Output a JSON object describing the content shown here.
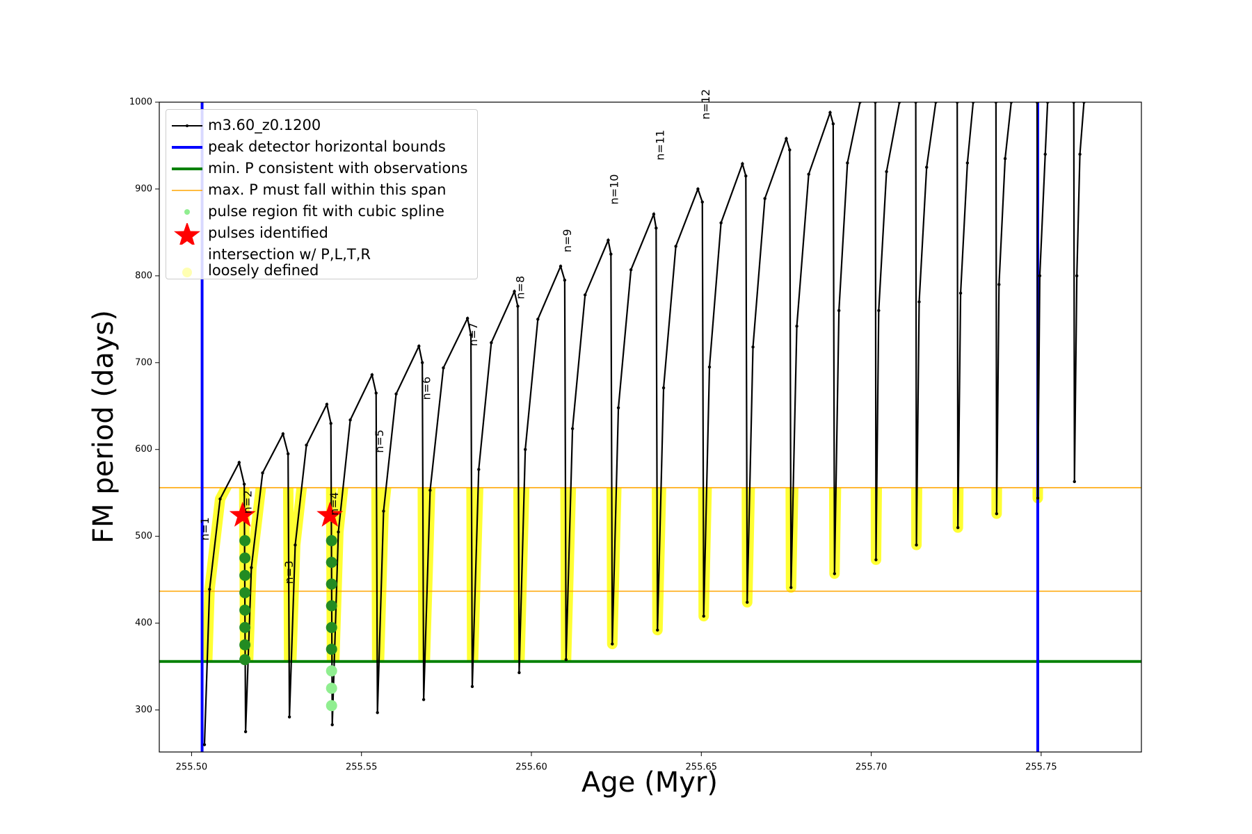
{
  "chart_data": {
    "type": "line",
    "x_label": "Age (Myr)",
    "y_label": "FM period (days)",
    "xlim": [
      255.4905,
      255.7795
    ],
    "ylim": [
      251.6,
      1000
    ],
    "xticks": [
      {
        "value": 255.5,
        "label": "255.50"
      },
      255.55,
      {
        "value": 255.6,
        "label": "255.60"
      },
      255.65,
      {
        "value": 255.7,
        "label": "255.70"
      },
      255.75
    ],
    "yticks": [
      300,
      400,
      500,
      600,
      700,
      800,
      900,
      1000
    ],
    "legend": "upper left",
    "series": [
      {
        "name": "m3.60_z0.1200",
        "kind": "line",
        "color": "#000000",
        "x": [
          255.5038,
          255.5053,
          255.5084,
          255.514,
          255.5155,
          255.5159,
          255.5176,
          255.5209,
          255.5269,
          255.5284,
          255.5288,
          255.5305,
          255.5338,
          255.5398,
          255.541,
          255.5414,
          255.5432,
          255.5467,
          255.5531,
          255.5543,
          255.5547,
          255.5565,
          255.5602,
          255.5669,
          255.5679,
          255.5683,
          255.5702,
          255.5741,
          255.5812,
          255.5822,
          255.5826,
          255.5845,
          255.5882,
          255.595,
          255.596,
          255.5964,
          255.5982,
          255.6019,
          255.6086,
          255.6098,
          255.6102,
          255.6121,
          255.6158,
          255.6226,
          255.6234,
          255.6238,
          255.6256,
          255.6293,
          255.636,
          255.6367,
          255.6371,
          255.6389,
          255.6425,
          255.649,
          255.6503,
          255.6507,
          255.6524,
          255.6558,
          255.6621,
          255.6631,
          255.6635,
          255.6652,
          255.6687,
          255.675,
          255.676,
          255.6764,
          255.6781,
          255.6816,
          255.6879,
          255.6888,
          255.6892,
          255.6905,
          255.693,
          255.6967,
          255.699,
          255.7012,
          255.7014,
          255.7022,
          255.7045,
          255.7083,
          255.7107,
          255.7131,
          255.7133,
          255.7141,
          255.7163,
          255.719,
          255.722,
          255.7253,
          255.7255,
          255.7263,
          255.7283,
          255.73,
          255.7335,
          255.7367,
          255.7369,
          255.7376,
          255.7394,
          255.7412,
          255.745,
          255.7488,
          255.749,
          255.7496,
          255.7512,
          255.7519,
          255.7557,
          255.7596,
          255.7598,
          255.7605,
          255.7614,
          255.7626
        ],
        "values": [
          260,
          439,
          543,
          585,
          560,
          275,
          464,
          573,
          618,
          595,
          292,
          490,
          605,
          652,
          630,
          283,
          505,
          634,
          686,
          665,
          297,
          529,
          664,
          719,
          700,
          312,
          553,
          694,
          751,
          732,
          327,
          577,
          723,
          782,
          765,
          343,
          600,
          750,
          811,
          795,
          358,
          624,
          778,
          841,
          825,
          376,
          648,
          807,
          871,
          855,
          392,
          671,
          834,
          900,
          885,
          408,
          695,
          861,
          929,
          915,
          424,
          718,
          889,
          958,
          945,
          441,
          742,
          917,
          988,
          975,
          457,
          760,
          930,
          1000,
          null,
          1000,
          473,
          760,
          920,
          1000,
          null,
          1000,
          490,
          770,
          925,
          1000,
          null,
          1000,
          510,
          780,
          930,
          1000,
          null,
          1000,
          526,
          790,
          935,
          1000,
          null,
          1000,
          544,
          800,
          940,
          1000,
          null,
          1000,
          563,
          800,
          940,
          1000
        ]
      },
      {
        "name": "peak detector horizontal bounds",
        "kind": "vline",
        "color": "#0000ff",
        "values": [
          255.5031,
          255.749
        ]
      },
      {
        "name": "min. P consistent with observations",
        "kind": "hline",
        "color": "#008000",
        "values": [
          355.9
        ]
      },
      {
        "name": "max. P must fall within this span",
        "kind": "hline",
        "color": "#ffa500",
        "values": [
          556,
          436.8
        ]
      },
      {
        "name": "pulse region fit with cubic spline",
        "kind": "scatter",
        "color": "#90ee90",
        "x": [
          255.5157,
          255.5157,
          255.5157,
          255.5157,
          255.5157,
          255.5157,
          255.5157,
          255.5157,
          255.5412,
          255.5412,
          255.5412,
          255.5412,
          255.5412,
          255.5412,
          255.5412,
          255.5412,
          255.5412
        ],
        "values": [
          495,
          475,
          455,
          435,
          415,
          395,
          375,
          358,
          495,
          470,
          445,
          420,
          395,
          370,
          345,
          325,
          305
        ],
        "colors": [
          "#228b22",
          "#228b22",
          "#228b22",
          "#228b22",
          "#228b22",
          "#228b22",
          "#228b22",
          "#228b22",
          "#228b22",
          "#228b22",
          "#228b22",
          "#228b22",
          "#228b22",
          "#228b22",
          "#90ee90",
          "#90ee90",
          "#90ee90"
        ]
      },
      {
        "name": "pulses identified",
        "kind": "star",
        "color": "#ff0000",
        "x": [
          255.515,
          255.5407
        ],
        "values": [
          524,
          524
        ]
      },
      {
        "name": "intersection w/ P,L,T,R\nloosely defined",
        "kind": "band",
        "color": "#ffff00"
      }
    ],
    "annotations": [
      {
        "text": "n=1",
        "x": 255.505,
        "y": 495
      },
      {
        "text": "n=2",
        "x": 255.5176,
        "y": 526
      },
      {
        "text": "n=3",
        "x": 255.5298,
        "y": 445
      },
      {
        "text": "n=4",
        "x": 255.5431,
        "y": 524
      },
      {
        "text": "n=5",
        "x": 255.5564,
        "y": 596
      },
      {
        "text": "n=6",
        "x": 255.5702,
        "y": 657
      },
      {
        "text": "n=7",
        "x": 255.584,
        "y": 719
      },
      {
        "text": "n=8",
        "x": 255.5979,
        "y": 773
      },
      {
        "text": "n=9",
        "x": 255.6117,
        "y": 827
      },
      {
        "text": "n=10",
        "x": 255.6255,
        "y": 882
      },
      {
        "text": "n=11",
        "x": 255.639,
        "y": 933
      },
      {
        "text": "n=12",
        "x": 255.6524,
        "y": 980
      }
    ]
  }
}
